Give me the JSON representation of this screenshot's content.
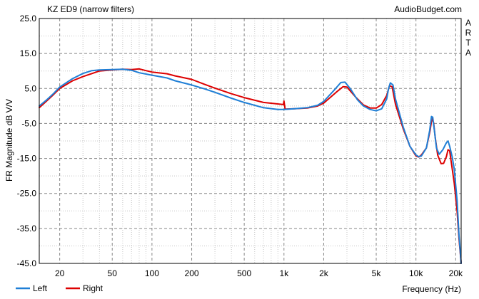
{
  "chart_data": {
    "type": "line",
    "title": "KZ ED9 (narrow filters)",
    "watermark": "AudioBudget.com",
    "side_label": [
      "A",
      "R",
      "T",
      "A"
    ],
    "xlabel": "Frequency (Hz)",
    "ylabel": "FR Magnitude dB V/V",
    "x_scale": "log",
    "xlim": [
      14,
      22000
    ],
    "ylim": [
      -45,
      25
    ],
    "x_ticks": [
      {
        "value": 20,
        "label": "20"
      },
      {
        "value": 50,
        "label": "50"
      },
      {
        "value": 100,
        "label": "100"
      },
      {
        "value": 200,
        "label": "200"
      },
      {
        "value": 500,
        "label": "500"
      },
      {
        "value": 1000,
        "label": "1k"
      },
      {
        "value": 2000,
        "label": "2k"
      },
      {
        "value": 5000,
        "label": "5k"
      },
      {
        "value": 10000,
        "label": "10k"
      },
      {
        "value": 20000,
        "label": "20k"
      }
    ],
    "y_ticks": [
      {
        "value": 25,
        "label": "25.0"
      },
      {
        "value": 15,
        "label": "15.0"
      },
      {
        "value": 5,
        "label": "5.0"
      },
      {
        "value": -5,
        "label": "-5.0"
      },
      {
        "value": -15,
        "label": "-15.0"
      },
      {
        "value": -25,
        "label": "-25.0"
      },
      {
        "value": -35,
        "label": "-35.0"
      },
      {
        "value": -45,
        "label": "-45.0"
      }
    ],
    "grid": true,
    "legend_position": "bottom-left",
    "series": [
      {
        "name": "Right",
        "color": "#dd0000",
        "points": [
          [
            14,
            -0.5
          ],
          [
            16,
            1.5
          ],
          [
            18,
            3.3
          ],
          [
            20,
            5.0
          ],
          [
            25,
            7.2
          ],
          [
            30,
            8.4
          ],
          [
            40,
            10.0
          ],
          [
            50,
            10.3
          ],
          [
            60,
            10.5
          ],
          [
            70,
            10.4
          ],
          [
            80,
            10.6
          ],
          [
            90,
            10.1
          ],
          [
            100,
            9.7
          ],
          [
            130,
            9.2
          ],
          [
            150,
            8.6
          ],
          [
            200,
            7.6
          ],
          [
            250,
            6.2
          ],
          [
            300,
            5.1
          ],
          [
            400,
            3.5
          ],
          [
            500,
            2.4
          ],
          [
            700,
            1.0
          ],
          [
            990,
            0.4
          ],
          [
            1000,
            1.4
          ],
          [
            1020,
            -0.9
          ],
          [
            1200,
            -0.8
          ],
          [
            1500,
            -0.6
          ],
          [
            1800,
            0.0
          ],
          [
            2000,
            0.8
          ],
          [
            2500,
            4.0
          ],
          [
            2800,
            5.5
          ],
          [
            3000,
            5.4
          ],
          [
            3500,
            2.5
          ],
          [
            4000,
            0.3
          ],
          [
            4500,
            -0.6
          ],
          [
            5000,
            -0.6
          ],
          [
            5500,
            0.4
          ],
          [
            6000,
            3.0
          ],
          [
            6300,
            5.8
          ],
          [
            6600,
            5.5
          ],
          [
            7000,
            0.5
          ],
          [
            8000,
            -6.5
          ],
          [
            9000,
            -11.5
          ],
          [
            10000,
            -14.3
          ],
          [
            10500,
            -14.6
          ],
          [
            11000,
            -14.0
          ],
          [
            12000,
            -12.0
          ],
          [
            12800,
            -7.0
          ],
          [
            13200,
            -3.5
          ],
          [
            13600,
            -4.8
          ],
          [
            14000,
            -9.0
          ],
          [
            14600,
            -14.0
          ],
          [
            15500,
            -16.5
          ],
          [
            16200,
            -16.4
          ],
          [
            17000,
            -14.5
          ],
          [
            17500,
            -12.5
          ],
          [
            18000,
            -12.8
          ],
          [
            18500,
            -16.0
          ],
          [
            19500,
            -22.0
          ],
          [
            20500,
            -30.0
          ],
          [
            21200,
            -38.0
          ],
          [
            22000,
            -45.0
          ]
        ]
      },
      {
        "name": "Left",
        "color": "#1f7fd6",
        "points": [
          [
            14,
            0.0
          ],
          [
            16,
            1.8
          ],
          [
            18,
            3.6
          ],
          [
            20,
            5.4
          ],
          [
            25,
            7.8
          ],
          [
            30,
            9.3
          ],
          [
            35,
            10.1
          ],
          [
            40,
            10.3
          ],
          [
            50,
            10.4
          ],
          [
            60,
            10.5
          ],
          [
            70,
            10.2
          ],
          [
            80,
            9.5
          ],
          [
            100,
            8.8
          ],
          [
            130,
            8.0
          ],
          [
            150,
            7.2
          ],
          [
            200,
            6.0
          ],
          [
            250,
            4.9
          ],
          [
            300,
            3.9
          ],
          [
            400,
            2.2
          ],
          [
            500,
            1.0
          ],
          [
            700,
            -0.5
          ],
          [
            900,
            -1.0
          ],
          [
            1000,
            -1.0
          ],
          [
            1200,
            -0.8
          ],
          [
            1500,
            -0.5
          ],
          [
            1800,
            0.2
          ],
          [
            2000,
            1.3
          ],
          [
            2400,
            4.5
          ],
          [
            2700,
            6.7
          ],
          [
            2900,
            6.8
          ],
          [
            3200,
            4.8
          ],
          [
            3600,
            1.8
          ],
          [
            4000,
            0.0
          ],
          [
            4500,
            -1.0
          ],
          [
            5000,
            -1.4
          ],
          [
            5500,
            -0.8
          ],
          [
            6000,
            2.0
          ],
          [
            6200,
            5.0
          ],
          [
            6400,
            6.6
          ],
          [
            6700,
            6.0
          ],
          [
            7000,
            2.0
          ],
          [
            8000,
            -6.0
          ],
          [
            9000,
            -11.5
          ],
          [
            10000,
            -14.0
          ],
          [
            10500,
            -14.5
          ],
          [
            11000,
            -14.3
          ],
          [
            12000,
            -12.0
          ],
          [
            12700,
            -7.0
          ],
          [
            13100,
            -3.0
          ],
          [
            13400,
            -3.2
          ],
          [
            13800,
            -7.0
          ],
          [
            14300,
            -12.0
          ],
          [
            15000,
            -13.8
          ],
          [
            16000,
            -12.5
          ],
          [
            17000,
            -10.5
          ],
          [
            17500,
            -10.0
          ],
          [
            18000,
            -11.5
          ],
          [
            18800,
            -14.5
          ],
          [
            19500,
            -18.0
          ],
          [
            20500,
            -27.0
          ],
          [
            21200,
            -37.0
          ],
          [
            22000,
            -45.0
          ]
        ]
      }
    ]
  }
}
